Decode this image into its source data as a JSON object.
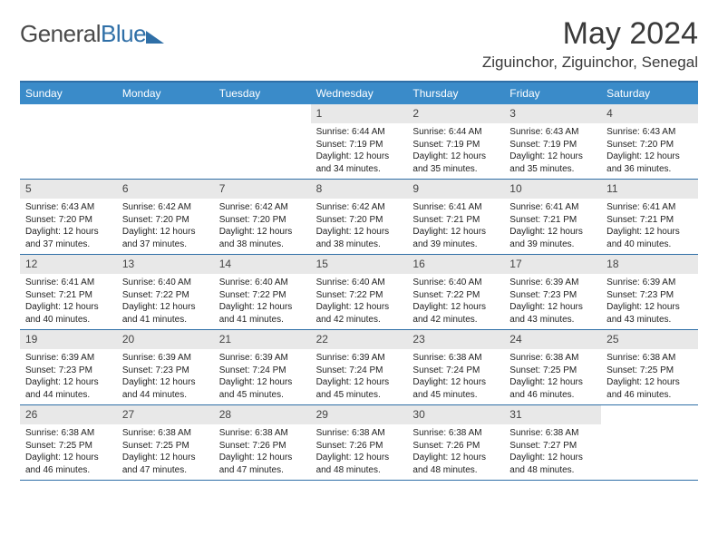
{
  "branding": {
    "logo_part1": "General",
    "logo_part2": "Blue"
  },
  "title": {
    "month_year": "May 2024",
    "location": "Ziguinchor, Ziguinchor, Senegal"
  },
  "colors": {
    "header_bg": "#3a8bc9",
    "header_text": "#ffffff",
    "accent_border": "#2f6fa7",
    "daynum_bg": "#e8e8e8",
    "text": "#222222",
    "logo_gray": "#4a4a4a",
    "logo_blue": "#2f6fa7",
    "background": "#ffffff"
  },
  "day_names": [
    "Sunday",
    "Monday",
    "Tuesday",
    "Wednesday",
    "Thursday",
    "Friday",
    "Saturday"
  ],
  "weeks": [
    [
      {
        "n": "",
        "sr": "",
        "ss": "",
        "dl": ""
      },
      {
        "n": "",
        "sr": "",
        "ss": "",
        "dl": ""
      },
      {
        "n": "",
        "sr": "",
        "ss": "",
        "dl": ""
      },
      {
        "n": "1",
        "sr": "Sunrise: 6:44 AM",
        "ss": "Sunset: 7:19 PM",
        "dl": "Daylight: 12 hours and 34 minutes."
      },
      {
        "n": "2",
        "sr": "Sunrise: 6:44 AM",
        "ss": "Sunset: 7:19 PM",
        "dl": "Daylight: 12 hours and 35 minutes."
      },
      {
        "n": "3",
        "sr": "Sunrise: 6:43 AM",
        "ss": "Sunset: 7:19 PM",
        "dl": "Daylight: 12 hours and 35 minutes."
      },
      {
        "n": "4",
        "sr": "Sunrise: 6:43 AM",
        "ss": "Sunset: 7:20 PM",
        "dl": "Daylight: 12 hours and 36 minutes."
      }
    ],
    [
      {
        "n": "5",
        "sr": "Sunrise: 6:43 AM",
        "ss": "Sunset: 7:20 PM",
        "dl": "Daylight: 12 hours and 37 minutes."
      },
      {
        "n": "6",
        "sr": "Sunrise: 6:42 AM",
        "ss": "Sunset: 7:20 PM",
        "dl": "Daylight: 12 hours and 37 minutes."
      },
      {
        "n": "7",
        "sr": "Sunrise: 6:42 AM",
        "ss": "Sunset: 7:20 PM",
        "dl": "Daylight: 12 hours and 38 minutes."
      },
      {
        "n": "8",
        "sr": "Sunrise: 6:42 AM",
        "ss": "Sunset: 7:20 PM",
        "dl": "Daylight: 12 hours and 38 minutes."
      },
      {
        "n": "9",
        "sr": "Sunrise: 6:41 AM",
        "ss": "Sunset: 7:21 PM",
        "dl": "Daylight: 12 hours and 39 minutes."
      },
      {
        "n": "10",
        "sr": "Sunrise: 6:41 AM",
        "ss": "Sunset: 7:21 PM",
        "dl": "Daylight: 12 hours and 39 minutes."
      },
      {
        "n": "11",
        "sr": "Sunrise: 6:41 AM",
        "ss": "Sunset: 7:21 PM",
        "dl": "Daylight: 12 hours and 40 minutes."
      }
    ],
    [
      {
        "n": "12",
        "sr": "Sunrise: 6:41 AM",
        "ss": "Sunset: 7:21 PM",
        "dl": "Daylight: 12 hours and 40 minutes."
      },
      {
        "n": "13",
        "sr": "Sunrise: 6:40 AM",
        "ss": "Sunset: 7:22 PM",
        "dl": "Daylight: 12 hours and 41 minutes."
      },
      {
        "n": "14",
        "sr": "Sunrise: 6:40 AM",
        "ss": "Sunset: 7:22 PM",
        "dl": "Daylight: 12 hours and 41 minutes."
      },
      {
        "n": "15",
        "sr": "Sunrise: 6:40 AM",
        "ss": "Sunset: 7:22 PM",
        "dl": "Daylight: 12 hours and 42 minutes."
      },
      {
        "n": "16",
        "sr": "Sunrise: 6:40 AM",
        "ss": "Sunset: 7:22 PM",
        "dl": "Daylight: 12 hours and 42 minutes."
      },
      {
        "n": "17",
        "sr": "Sunrise: 6:39 AM",
        "ss": "Sunset: 7:23 PM",
        "dl": "Daylight: 12 hours and 43 minutes."
      },
      {
        "n": "18",
        "sr": "Sunrise: 6:39 AM",
        "ss": "Sunset: 7:23 PM",
        "dl": "Daylight: 12 hours and 43 minutes."
      }
    ],
    [
      {
        "n": "19",
        "sr": "Sunrise: 6:39 AM",
        "ss": "Sunset: 7:23 PM",
        "dl": "Daylight: 12 hours and 44 minutes."
      },
      {
        "n": "20",
        "sr": "Sunrise: 6:39 AM",
        "ss": "Sunset: 7:23 PM",
        "dl": "Daylight: 12 hours and 44 minutes."
      },
      {
        "n": "21",
        "sr": "Sunrise: 6:39 AM",
        "ss": "Sunset: 7:24 PM",
        "dl": "Daylight: 12 hours and 45 minutes."
      },
      {
        "n": "22",
        "sr": "Sunrise: 6:39 AM",
        "ss": "Sunset: 7:24 PM",
        "dl": "Daylight: 12 hours and 45 minutes."
      },
      {
        "n": "23",
        "sr": "Sunrise: 6:38 AM",
        "ss": "Sunset: 7:24 PM",
        "dl": "Daylight: 12 hours and 45 minutes."
      },
      {
        "n": "24",
        "sr": "Sunrise: 6:38 AM",
        "ss": "Sunset: 7:25 PM",
        "dl": "Daylight: 12 hours and 46 minutes."
      },
      {
        "n": "25",
        "sr": "Sunrise: 6:38 AM",
        "ss": "Sunset: 7:25 PM",
        "dl": "Daylight: 12 hours and 46 minutes."
      }
    ],
    [
      {
        "n": "26",
        "sr": "Sunrise: 6:38 AM",
        "ss": "Sunset: 7:25 PM",
        "dl": "Daylight: 12 hours and 46 minutes."
      },
      {
        "n": "27",
        "sr": "Sunrise: 6:38 AM",
        "ss": "Sunset: 7:25 PM",
        "dl": "Daylight: 12 hours and 47 minutes."
      },
      {
        "n": "28",
        "sr": "Sunrise: 6:38 AM",
        "ss": "Sunset: 7:26 PM",
        "dl": "Daylight: 12 hours and 47 minutes."
      },
      {
        "n": "29",
        "sr": "Sunrise: 6:38 AM",
        "ss": "Sunset: 7:26 PM",
        "dl": "Daylight: 12 hours and 48 minutes."
      },
      {
        "n": "30",
        "sr": "Sunrise: 6:38 AM",
        "ss": "Sunset: 7:26 PM",
        "dl": "Daylight: 12 hours and 48 minutes."
      },
      {
        "n": "31",
        "sr": "Sunrise: 6:38 AM",
        "ss": "Sunset: 7:27 PM",
        "dl": "Daylight: 12 hours and 48 minutes."
      },
      {
        "n": "",
        "sr": "",
        "ss": "",
        "dl": ""
      }
    ]
  ]
}
